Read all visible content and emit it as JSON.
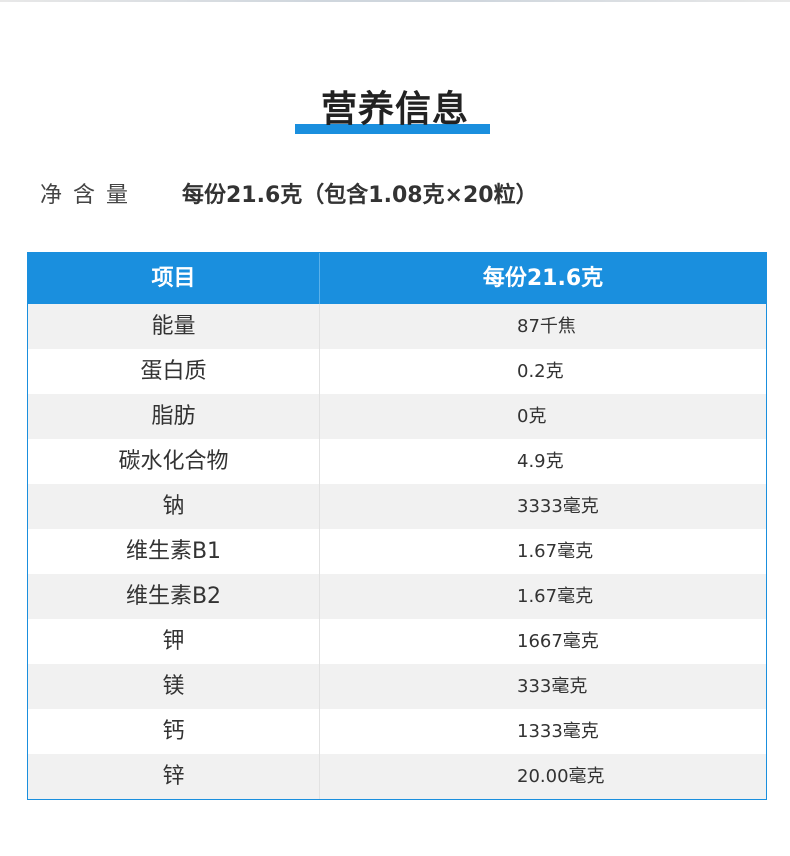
{
  "title": "营养信息",
  "net_content": {
    "label": "净含量",
    "value": "每份21.6克（包含1.08克×20粒）"
  },
  "table": {
    "headers": [
      "项目",
      "每份21.6克"
    ],
    "rows": [
      {
        "item": "能量",
        "value": "87千焦"
      },
      {
        "item": "蛋白质",
        "value": "0.2克"
      },
      {
        "item": "脂肪",
        "value": "0克"
      },
      {
        "item": "碳水化合物",
        "value": "4.9克"
      },
      {
        "item": "钠",
        "value": "3333毫克"
      },
      {
        "item": "维生素B1",
        "value": "1.67毫克"
      },
      {
        "item": "维生素B2",
        "value": "1.67毫克"
      },
      {
        "item": "钾",
        "value": "1667毫克"
      },
      {
        "item": "镁",
        "value": "333毫克"
      },
      {
        "item": "钙",
        "value": "1333毫克"
      },
      {
        "item": "锌",
        "value": "20.00毫克"
      }
    ]
  },
  "colors": {
    "accent": "#1a8fde",
    "row_shade": "#f1f1f1"
  }
}
